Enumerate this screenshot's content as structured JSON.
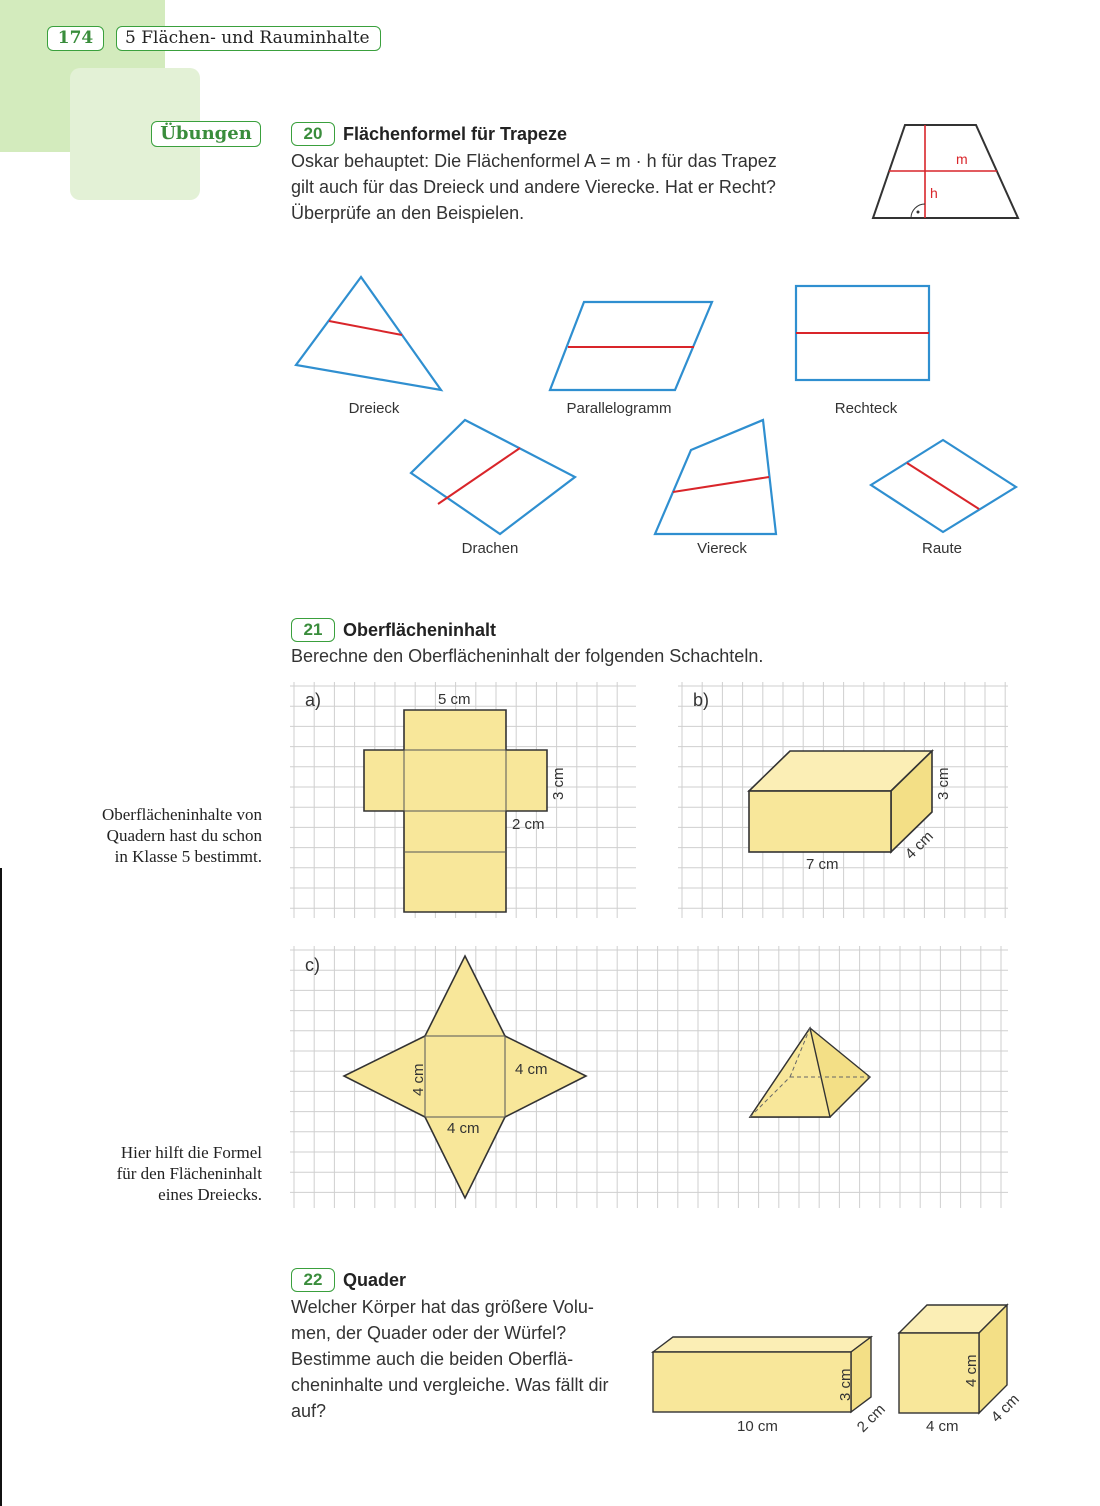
{
  "header": {
    "page_number": "174",
    "chapter": "5 Flächen- und Rauminhalte"
  },
  "section_label": "Übungen",
  "ex20": {
    "number": "20",
    "title": "Flächenformel für Trapeze",
    "lines": [
      "Oskar behauptet: Die Flächenformel A = m · h für das Trapez",
      "gilt auch für das Dreieck und andere Vierecke. Hat er Recht?",
      "Überprüfe an den Beispielen."
    ],
    "trapezoid_labels": {
      "m": "m",
      "h": "h"
    },
    "shapes": [
      "Dreieck",
      "Parallelogramm",
      "Rechteck",
      "Drachen",
      "Viereck",
      "Raute"
    ]
  },
  "ex21": {
    "number": "21",
    "title": "Oberflächeninhalt",
    "text": "Berechne den Oberflächeninhalt der folgenden Schachteln.",
    "a": {
      "label": "a)",
      "dims": [
        "5 cm",
        "3 cm",
        "2 cm"
      ]
    },
    "b": {
      "label": "b)",
      "dims": [
        "3 cm",
        "7 cm",
        "4 cm"
      ]
    },
    "c": {
      "label": "c)",
      "dims": [
        "4 cm",
        "4 cm",
        "4 cm"
      ]
    }
  },
  "margin_notes": {
    "note1": [
      "Oberflächeninhalte von",
      "Quadern hast du schon",
      "in Klasse 5 bestimmt."
    ],
    "note2": [
      "Hier hilft die Formel",
      "für den Flächeninhalt",
      "eines Dreiecks."
    ]
  },
  "ex22": {
    "number": "22",
    "title": "Quader",
    "lines": [
      "Welcher Körper hat das größere Volu-",
      "men, der Quader oder der Würfel?",
      "Bestimme auch die beiden Oberflä-",
      "cheninhalte und vergleiche. Was fällt dir",
      "auf?"
    ],
    "cuboid_dims": [
      "3 cm",
      "10 cm",
      "2 cm"
    ],
    "cube_dims": [
      "4 cm",
      "4 cm",
      "4 cm"
    ]
  },
  "colors": {
    "accent_green": "#3aa03d",
    "shape_blue": "#2f8fd0",
    "midline_red": "#d9252a",
    "net_yellow": "#f8e79a"
  }
}
